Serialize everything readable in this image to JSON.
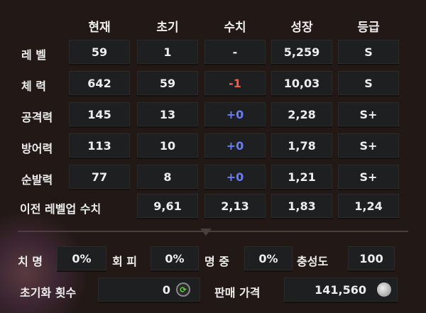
{
  "headers": [
    "현재",
    "초기",
    "수치",
    "성장",
    "등급"
  ],
  "rows": [
    {
      "label": "레 벨",
      "values": [
        "59",
        "1",
        "-",
        "5,259",
        "S"
      ]
    },
    {
      "label": "체 력",
      "values": [
        "642",
        "59",
        "-1",
        "10,03",
        "S"
      ]
    },
    {
      "label": "공격력",
      "values": [
        "145",
        "13",
        "+0",
        "2,28",
        "S+"
      ]
    },
    {
      "label": "방어력",
      "values": [
        "113",
        "10",
        "+0",
        "1,78",
        "S+"
      ]
    },
    {
      "label": "순발력",
      "values": [
        "77",
        "8",
        "+0",
        "1,21",
        "S+"
      ]
    }
  ],
  "prev": {
    "label": "이전 레벨업 수치",
    "values": [
      "9,61",
      "2,13",
      "1,83",
      "1,24"
    ]
  },
  "stats": [
    {
      "label": "치 명",
      "value": "0%"
    },
    {
      "label": "회 피",
      "value": "0%"
    },
    {
      "label": "명 중",
      "value": "0%"
    },
    {
      "label": "충성도",
      "value": "100"
    }
  ],
  "reset": {
    "label": "초기화 횟수",
    "value": "0",
    "icon": "reset-icon"
  },
  "sell": {
    "label": "판매 가격",
    "value": "141,560",
    "icon": "coin-icon"
  },
  "colors": {
    "negative": "#ff5a4a",
    "zero": "#6a7cff",
    "background": "#221815"
  }
}
